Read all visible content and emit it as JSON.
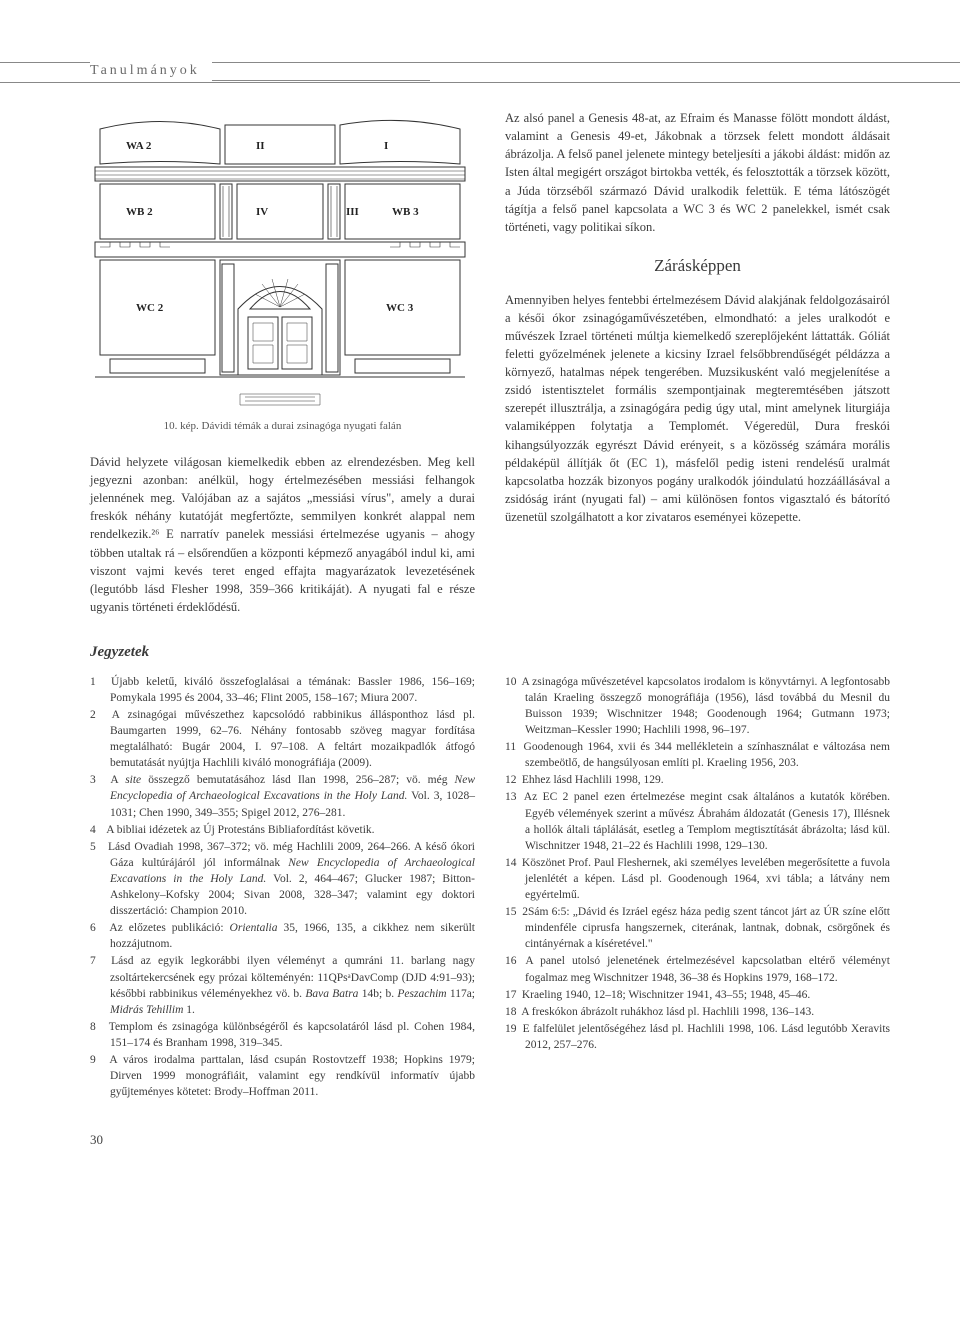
{
  "header": {
    "section_label": "Tanulmányok"
  },
  "figure": {
    "labels": {
      "WA2": "WA 2",
      "II": "II",
      "I": "I",
      "WB2": "WB 2",
      "IV": "IV",
      "III": "III",
      "WB3": "WB 3",
      "WC2": "WC 2",
      "WC3": "WC 3"
    },
    "caption": "10. kép. Dávidi témák a durai zsinagóga nyugati falán",
    "stroke": "#333333",
    "fill": "#ffffff"
  },
  "top_right_para": "Az alsó panel a Genesis 48-at, az Efraim és Manasse fölött mondott áldást, valamint a Genesis 49-et, Jákobnak a törzsek felett mondott áldásait ábrázolja. A felső panel jelenete mintegy beteljesíti a jákobi áldást: midőn az Isten által megigért országot birtokba vették, és felosztották a törzsek között, a Júda törzséből származó Dávid uralkodik felettük. E téma látószögét tágítja a felső panel kapcsolata a WC 3 és WC 2 panelekkel, ismét csak történeti, vagy politikai síkon.",
  "subhead": "Zárásképpen",
  "mid_left_para": "Dávid helyzete világosan kiemelkedik ebben az elrendezésben. Meg kell jegyezni azonban: anélkül, hogy értelmezésében messiási felhangok jelennének meg. Valójában az a sajátos „messiási vírus\", amely a durai freskók néhány kutatóját megfertőzte, semmilyen konkrét alappal nem rendelkezik.²⁶ E narratív panelek messiási értelmezése ugyanis – ahogy többen utaltak rá – elsőrendűen a központi képmező anyagából indul ki, ami viszont vajmi kevés teret enged effajta magyarázatok levezetésének (legutóbb lásd Flesher 1998, 359–366 kritikáját). A nyugati fal e része ugyanis történeti érdeklődésű.",
  "mid_right_para": "Amennyiben helyes fentebbi értelmezésem Dávid alakjának feldolgozásairól a késői ókor zsinagógaművészetében, elmondható: a jeles uralkodót e művészek Izrael történeti múltja kiemelkedő szereplőjeként láttatták. Góliát feletti győzelmének jelenete a kicsiny Izrael felsőbbrendűségét példázza a környező, hatalmas népek tengerében. Muzsikusként való megjelenítése a zsidó istentisztelet formális szempontjainak megteremtésében játszott szerepét illusztrálja, a zsinagógára pedig úgy utal, mint amelynek liturgiája valamiképpen folytatja a Templomét. Végeredül, Dura freskói kihangsúlyozzák egyrészt Dávid erényeit, s a közösség számára morális példaképül állítják őt (EC 1), másfelől pedig isteni rendelésű uralmát kapcsolatba hozzák bizonyos pogány uralkodók jóindulatú hozzáállásával a zsidóság iránt (nyugati fal) – ami különösen fontos vigasztaló és bátorító üzenetül szolgálhatott a kor zivataros eseményei közepette.",
  "notes_head": "Jegyzetek",
  "notes_left": [
    {
      "n": "1",
      "t": "Újabb keletű, kiváló összefoglalásai a témának: Bassler 1986, 156–169; Pomykala 1995 és 2004, 33–46; Flint 2005, 158–167; Miura 2007."
    },
    {
      "n": "2",
      "t": "A zsinagógai művészethez kapcsolódó rabbinikus állásponthoz lásd pl. Baumgarten 1999, 62–76. Néhány fontosabb szöveg magyar fordítása megtalálható: Bugár 2004, I. 97–108. A feltárt mozaikpadlók átfogó bemutatását nyújtja Hachlili kiváló monográfiája (2009)."
    },
    {
      "n": "3",
      "t": "A <span class=\"ital\">site</span> összegző bemutatásához lásd Ilan 1998, 256–287; vö. még <span class=\"ital\">New Encyclopedia of Archaeological Excavations in the Holy Land.</span> Vol. 3, 1028–1031; Chen 1990, 349–355; Spigel 2012, 276–281."
    },
    {
      "n": "4",
      "t": "A bibliai idézetek az Új Protestáns Bibliafordítást követik."
    },
    {
      "n": "5",
      "t": "Lásd Ovadiah 1998, 367–372; vö. még Hachlili 2009, 264–266. A késő ókori Gáza kultúrájáról jól informálnak <span class=\"ital\">New Encyclopedia of Archaeological Excavations in the Holy Land.</span> Vol. 2, 464–467; Glucker 1987; Bitton-Ashkelony–Kofsky 2004; Sivan 2008, 328–347; valamint egy doktori disszertáció: Champion 2010."
    },
    {
      "n": "6",
      "t": "Az előzetes publikáció: <span class=\"ital\">Orientalia</span> 35, 1966, 135, a cikkhez nem sikerült hozzájutnom."
    },
    {
      "n": "7",
      "t": "Lásd az egyik legkorábbi ilyen véleményt a qumráni 11. barlang nagy zsoltártekercsének egy prózai költeményén: 11QPsᵃDavComp (DJD 4:91–93); későbbi rabbinikus véleményekhez vö. b. <span class=\"ital\">Bava Batra</span> 14b; b. <span class=\"ital\">Peszachim</span> 117a; <span class=\"ital\">Midrás Tehillim</span> 1."
    },
    {
      "n": "8",
      "t": "Templom és zsinagóga különbségéről és kapcsolatáról lásd pl. Cohen 1984, 151–174 és Branham 1998, 319–345."
    },
    {
      "n": "9",
      "t": "A város irodalma parttalan, lásd csupán Rostovtzeff 1938; Hopkins 1979; Dirven 1999 monográfiáit, valamint egy rendkívül informatív újabb gyűjteményes kötetet: Brody–Hoffman 2011."
    }
  ],
  "notes_right": [
    {
      "n": "10",
      "t": "A zsinagóga művészetével kapcsolatos irodalom is könyvtárnyi. A legfontosabb talán Kraeling összegző monográfiája (1956), lásd továbbá du Mesnil du Buisson 1939; Wischnitzer 1948; Goodenough 1964; Gutmann 1973; Weitzman–Kessler 1990; Hachlili 1998, 96–197."
    },
    {
      "n": "11",
      "t": "Goodenough 1964, xvii és 344 mellékletein a színhasználat e változása nem szembeötlő, de hangsúlyosan említi pl. Kraeling 1956, 203."
    },
    {
      "n": "12",
      "t": "Ehhez lásd Hachlili 1998, 129."
    },
    {
      "n": "13",
      "t": "Az EC 2 panel ezen értelmezése megint csak általános a kutatók körében. Egyéb vélemények szerint a művész Ábrahám áldozatát (Genesis 17), Illésnek a hollók általi táplálását, esetleg a Templom megtisztítását ábrázolta; lásd kül. Wischnitzer 1948, 21–22 és Hachlili 1998, 129–130."
    },
    {
      "n": "14",
      "t": "Köszönet Prof. Paul Fleshernek, aki személyes levelében megerősítette a fuvola jelenlétét a képen. Lásd pl. Goodenough 1964, xvi tábla; a látvány nem egyértelmű."
    },
    {
      "n": "15",
      "t": "2Sám 6:5: „Dávid és Izráel egész háza pedig szent táncot járt az ÚR színe előtt mindenféle ciprusfa hangszernek, citerának, lantnak, dobnak, csörgőnek és cintányérnak a kíséretével.\""
    },
    {
      "n": "16",
      "t": "A panel utolsó jelenetének értelmezésével kapcsolatban eltérő véleményt fogalmaz meg Wischnitzer 1948, 36–38 és Hopkins 1979, 168–172."
    },
    {
      "n": "17",
      "t": "Kraeling 1940, 12–18; Wischnitzer 1941, 43–55; 1948, 45–46."
    },
    {
      "n": "18",
      "t": "A freskókon ábrázolt ruhákhoz lásd pl. Hachlili 1998, 136–143."
    },
    {
      "n": "19",
      "t": "E falfelület jelentőségéhez lásd pl. Hachlili 1998, 106. Lásd legutóbb Xeravits 2012, 257–276."
    }
  ],
  "page_number": "30"
}
